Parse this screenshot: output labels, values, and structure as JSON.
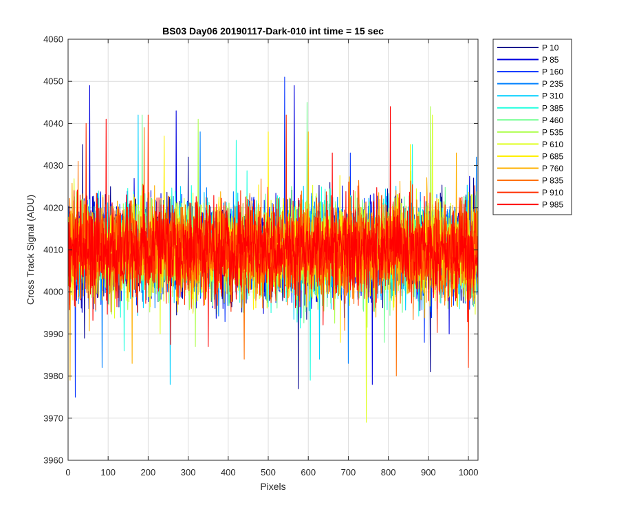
{
  "chart_data": {
    "type": "line",
    "title": "BS03 Day06 20190117-Dark-010 int time = 15 sec",
    "xlabel": "Pixels",
    "ylabel": "Cross Track Signal (ADU)",
    "xlim": [
      0,
      1024
    ],
    "ylim": [
      3960,
      4060
    ],
    "xticks": [
      0,
      100,
      200,
      300,
      400,
      500,
      600,
      700,
      800,
      900,
      1000
    ],
    "yticks": [
      3960,
      3970,
      3980,
      3990,
      4000,
      4010,
      4020,
      4030,
      4040,
      4050,
      4060
    ],
    "grid": true,
    "legend_position": "outside-top-right",
    "x_range": [
      1,
      1024
    ],
    "series": [
      {
        "name": "P 10",
        "color": "#00008F",
        "mean": 4010,
        "spread": 5.5,
        "seed": 11,
        "spikes": [
          [
            36,
            4035
          ],
          [
            41,
            3989
          ],
          [
            300,
            4032
          ],
          [
            575,
            3977
          ],
          [
            905,
            3981
          ]
        ]
      },
      {
        "name": "P 85",
        "color": "#0000DF",
        "mean": 4010,
        "spread": 5.5,
        "seed": 23,
        "spikes": [
          [
            54,
            4049
          ],
          [
            270,
            4043
          ],
          [
            565,
            4049
          ],
          [
            760,
            3978
          ],
          [
            952,
            3990
          ]
        ]
      },
      {
        "name": "P 160",
        "color": "#0030FF",
        "mean": 4010,
        "spread": 5.5,
        "seed": 37,
        "spikes": [
          [
            18,
            3975
          ],
          [
            541,
            4051
          ],
          [
            705,
            4033
          ],
          [
            890,
            3988
          ]
        ]
      },
      {
        "name": "P 235",
        "color": "#0080FF",
        "mean": 4010,
        "spread": 5.5,
        "seed": 41,
        "spikes": [
          [
            85,
            3982
          ],
          [
            330,
            4038
          ],
          [
            700,
            3983
          ],
          [
            1020,
            4032
          ]
        ]
      },
      {
        "name": "P 310",
        "color": "#00CFFF",
        "mean": 4010,
        "spread": 5.5,
        "seed": 53,
        "spikes": [
          [
            175,
            4042
          ],
          [
            255,
            3978
          ],
          [
            628,
            3984
          ],
          [
            910,
            4040
          ]
        ]
      },
      {
        "name": "P 385",
        "color": "#20FFDF",
        "mean": 4010,
        "spread": 5.5,
        "seed": 67,
        "spikes": [
          [
            140,
            3986
          ],
          [
            420,
            4036
          ],
          [
            605,
            3979
          ],
          [
            860,
            4035
          ]
        ]
      },
      {
        "name": "P 460",
        "color": "#70FF8F",
        "mean": 4010,
        "spread": 5.5,
        "seed": 71,
        "spikes": [
          [
            185,
            4042
          ],
          [
            597,
            4045
          ],
          [
            790,
            3988
          ]
        ]
      },
      {
        "name": "P 535",
        "color": "#AFFF50",
        "mean": 4010,
        "spread": 5.5,
        "seed": 83,
        "spikes": [
          [
            325,
            4041
          ],
          [
            318,
            3987
          ],
          [
            905,
            4044
          ]
        ]
      },
      {
        "name": "P 610",
        "color": "#DFFF20",
        "mean": 4010,
        "spread": 5.5,
        "seed": 97,
        "spikes": [
          [
            745,
            3969
          ],
          [
            910,
            4042
          ],
          [
            230,
            3990
          ]
        ]
      },
      {
        "name": "P 685",
        "color": "#FFEF00",
        "mean": 4010,
        "spread": 5.5,
        "seed": 101,
        "spikes": [
          [
            240,
            4037
          ],
          [
            500,
            4038
          ],
          [
            855,
            4035
          ],
          [
            680,
            3988
          ]
        ]
      },
      {
        "name": "P 760",
        "color": "#FFB000",
        "mean": 4010,
        "spread": 5.5,
        "seed": 113,
        "spikes": [
          [
            5,
            3979
          ],
          [
            160,
            3983
          ],
          [
            970,
            4033
          ],
          [
            600,
            4038
          ]
        ]
      },
      {
        "name": "P 835",
        "color": "#FF6F00",
        "mean": 4010,
        "spread": 5.5,
        "seed": 127,
        "spikes": [
          [
            190,
            4039
          ],
          [
            440,
            3984
          ],
          [
            820,
            3980
          ],
          [
            25,
            4031
          ]
        ]
      },
      {
        "name": "P 910",
        "color": "#FF2F00",
        "mean": 4010,
        "spread": 5.5,
        "seed": 131,
        "spikes": [
          [
            45,
            4040
          ],
          [
            545,
            4042
          ],
          [
            200,
            4042
          ],
          [
            1000,
            3982
          ]
        ]
      },
      {
        "name": "P 985",
        "color": "#FF0000",
        "mean": 4010,
        "spread": 5.5,
        "seed": 139,
        "spikes": [
          [
            95,
            4041
          ],
          [
            805,
            4044
          ],
          [
            350,
            3987
          ],
          [
            660,
            4033
          ]
        ]
      }
    ]
  }
}
